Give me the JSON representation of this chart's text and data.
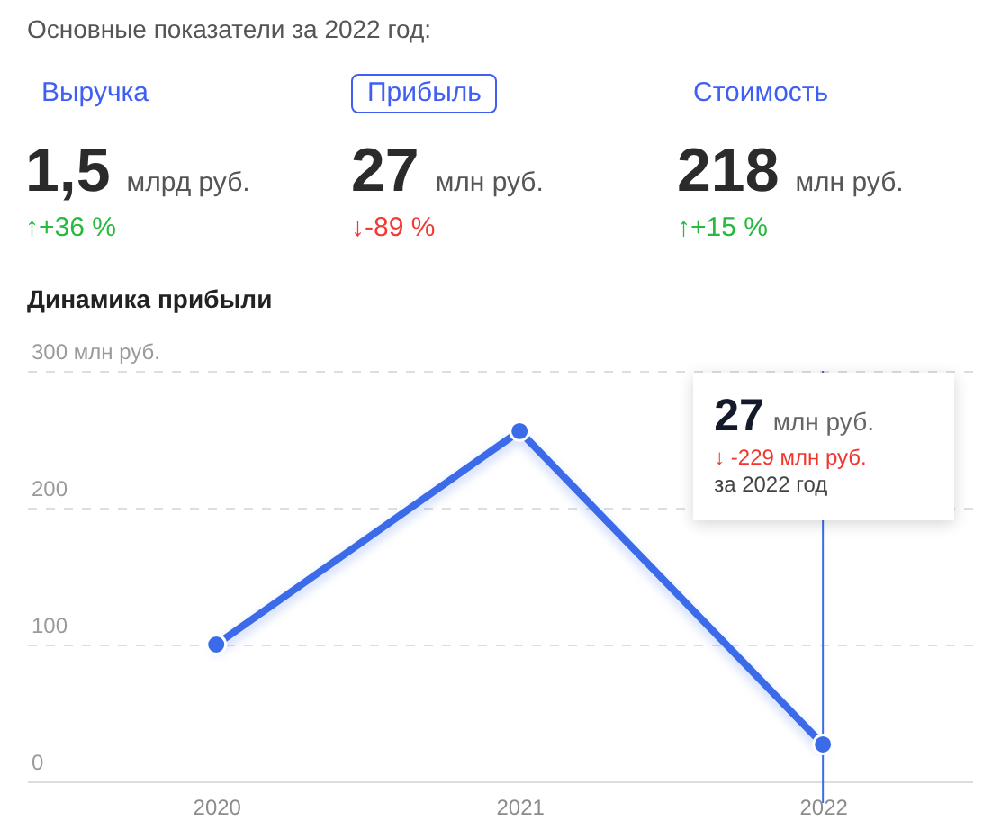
{
  "chart_data": [
    {
      "type": "other",
      "title": "Основные показатели за 2022 год:",
      "annotations": [
        "Выручка",
        "1,5",
        "млрд руб.",
        "↑+36 %",
        "Прибыль",
        "27",
        "млн руб.",
        "↓-89 %",
        "Стоимость",
        "218",
        "млн руб.",
        "↑+15 %"
      ],
      "colors": [
        "#27b940",
        "#f23a34",
        "#27b940"
      ]
    },
    {
      "type": "line",
      "title": "Динамика прибыли",
      "categories": [
        "2020",
        "2021",
        "2022"
      ],
      "series": [
        {
          "color": "#3b6be9",
          "values": [
            100,
            256,
            27
          ]
        }
      ],
      "ylim": [
        0,
        300
      ],
      "yticks": [
        0,
        100,
        200,
        {
          "value": 300,
          "label": "300 млн руб."
        }
      ],
      "grid": "y",
      "marker": "circle",
      "ref_lines": [
        {
          "axis": "x",
          "value": "2022",
          "color": "#3b6be9"
        }
      ],
      "annotations": [
        {
          "text": "27",
          "x": "2022"
        },
        {
          "text": "млн руб.",
          "x": "2022"
        },
        {
          "text": "↓ -229 млн руб.",
          "x": "2022"
        },
        {
          "text": "за 2022 год",
          "x": "2022"
        }
      ]
    }
  ]
}
